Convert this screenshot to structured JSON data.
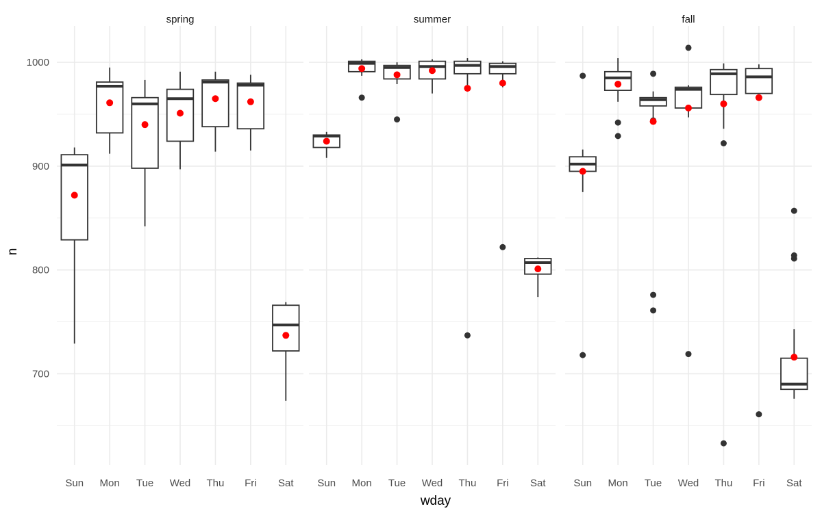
{
  "chart_data": {
    "type": "boxplot",
    "xlabel": "wday",
    "ylabel": "n",
    "ylim": [
      612,
      1035
    ],
    "yticks": [
      700,
      800,
      900,
      1000
    ],
    "y_minor_ticks": [
      650,
      750,
      850,
      950
    ],
    "grid": true,
    "categories": [
      "Sun",
      "Mon",
      "Tue",
      "Wed",
      "Thu",
      "Fri",
      "Sat"
    ],
    "colors": {
      "box": "#333333",
      "mean": "#ff0000",
      "outlier": "#333333",
      "grid": "#ebebeb"
    },
    "facets": [
      {
        "title": "spring",
        "boxes": [
          {
            "day": "Sun",
            "q1": 829,
            "median": 901,
            "q3": 911,
            "lower": 729,
            "upper": 918,
            "mean": 872,
            "outliers": []
          },
          {
            "day": "Mon",
            "q1": 932,
            "median": 977,
            "q3": 981,
            "lower": 912,
            "upper": 995,
            "mean": 961,
            "outliers": []
          },
          {
            "day": "Tue",
            "q1": 898,
            "median": 960,
            "q3": 966,
            "lower": 842,
            "upper": 983,
            "mean": 940,
            "outliers": []
          },
          {
            "day": "Wed",
            "q1": 924,
            "median": 965,
            "q3": 974,
            "lower": 897,
            "upper": 991,
            "mean": 951,
            "outliers": []
          },
          {
            "day": "Thu",
            "q1": 938,
            "median": 981,
            "q3": 983,
            "lower": 914,
            "upper": 991,
            "mean": 965,
            "outliers": []
          },
          {
            "day": "Fri",
            "q1": 936,
            "median": 978,
            "q3": 980,
            "lower": 915,
            "upper": 988,
            "mean": 962,
            "outliers": []
          },
          {
            "day": "Sat",
            "q1": 722,
            "median": 747,
            "q3": 766,
            "lower": 674,
            "upper": 769,
            "mean": 737,
            "outliers": []
          }
        ]
      },
      {
        "title": "summer",
        "boxes": [
          {
            "day": "Sun",
            "q1": 918,
            "median": 929,
            "q3": 930,
            "lower": 908,
            "upper": 933,
            "mean": 924,
            "outliers": []
          },
          {
            "day": "Mon",
            "q1": 991,
            "median": 999,
            "q3": 1001,
            "lower": 987,
            "upper": 1003,
            "mean": 994,
            "outliers": [
              966
            ]
          },
          {
            "day": "Tue",
            "q1": 984,
            "median": 995,
            "q3": 997,
            "lower": 979,
            "upper": 1000,
            "mean": 988,
            "outliers": [
              945
            ]
          },
          {
            "day": "Wed",
            "q1": 984,
            "median": 996,
            "q3": 1001,
            "lower": 970,
            "upper": 1003,
            "mean": 992,
            "outliers": []
          },
          {
            "day": "Thu",
            "q1": 989,
            "median": 997,
            "q3": 1001,
            "lower": 977,
            "upper": 1004,
            "mean": 975,
            "outliers": [
              737
            ]
          },
          {
            "day": "Fri",
            "q1": 989,
            "median": 996,
            "q3": 999,
            "lower": 976,
            "upper": 1001,
            "mean": 980,
            "outliers": [
              822
            ]
          },
          {
            "day": "Sat",
            "q1": 796,
            "median": 807,
            "q3": 811,
            "lower": 774,
            "upper": 812,
            "mean": 801,
            "outliers": []
          }
        ]
      },
      {
        "title": "fall",
        "boxes": [
          {
            "day": "Sun",
            "q1": 895,
            "median": 902,
            "q3": 909,
            "lower": 875,
            "upper": 916,
            "mean": 895,
            "outliers": [
              987,
              718
            ]
          },
          {
            "day": "Mon",
            "q1": 973,
            "median": 985,
            "q3": 991,
            "lower": 962,
            "upper": 1004,
            "mean": 979,
            "outliers": [
              942,
              929
            ]
          },
          {
            "day": "Tue",
            "q1": 958,
            "median": 964,
            "q3": 966,
            "lower": 943,
            "upper": 972,
            "mean": 943,
            "outliers": [
              989,
              944,
              776,
              761
            ]
          },
          {
            "day": "Wed",
            "q1": 956,
            "median": 974,
            "q3": 976,
            "lower": 947,
            "upper": 978,
            "mean": 956,
            "outliers": [
              1014,
              719
            ]
          },
          {
            "day": "Thu",
            "q1": 969,
            "median": 989,
            "q3": 993,
            "lower": 936,
            "upper": 999,
            "mean": 960,
            "outliers": [
              922,
              633
            ]
          },
          {
            "day": "Fri",
            "q1": 970,
            "median": 986,
            "q3": 994,
            "lower": 970,
            "upper": 998,
            "mean": 966,
            "outliers": [
              661
            ]
          },
          {
            "day": "Sat",
            "q1": 685,
            "median": 690,
            "q3": 715,
            "lower": 676,
            "upper": 743,
            "mean": 716,
            "outliers": [
              857,
              814,
              811
            ]
          }
        ]
      }
    ]
  }
}
